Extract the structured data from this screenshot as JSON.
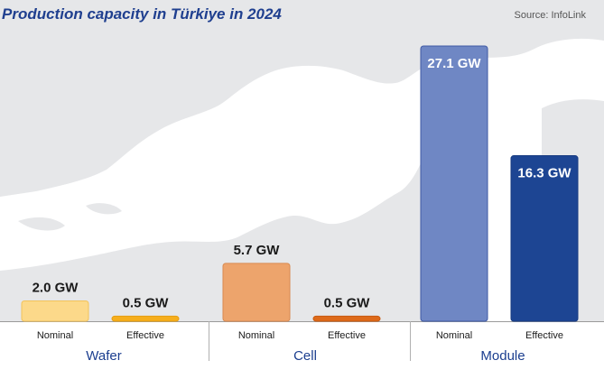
{
  "header": {
    "title": "Production capacity in Türkiye in 2024",
    "source": "Source: InfoLink"
  },
  "colors": {
    "background_map": "#e6e7e9",
    "axis": "#9a9a9a",
    "label_dark": "#1a1a1a",
    "label_light": "#ffffff",
    "group_label": "#1b3e8f"
  },
  "chart_data": {
    "type": "bar",
    "title": "Production capacity in Türkiye in 2024",
    "unit": "GW",
    "groups": [
      {
        "name": "Wafer",
        "bars": [
          {
            "category": "Nominal",
            "value": 2.0,
            "label": "2.0 GW",
            "color": "#fcd98a",
            "stroke": "#f2c35a",
            "label_color": "#1a1a1a"
          },
          {
            "category": "Effective",
            "value": 0.5,
            "label": "0.5 GW",
            "color": "#f6ae1c",
            "stroke": "#e59d10",
            "label_color": "#1a1a1a"
          }
        ]
      },
      {
        "name": "Cell",
        "bars": [
          {
            "category": "Nominal",
            "value": 5.7,
            "label": "5.7 GW",
            "color": "#eda46c",
            "stroke": "#d98a50",
            "label_color": "#1a1a1a"
          },
          {
            "category": "Effective",
            "value": 0.5,
            "label": "0.5 GW",
            "color": "#de6a1a",
            "stroke": "#c85a10",
            "label_color": "#1a1a1a"
          }
        ]
      },
      {
        "name": "Module",
        "bars": [
          {
            "category": "Nominal",
            "value": 27.1,
            "label": "27.1 GW",
            "color": "#6f87c4",
            "stroke": "#3f5aa5",
            "label_color": "#ffffff"
          },
          {
            "category": "Effective",
            "value": 16.3,
            "label": "16.3 GW",
            "color": "#1d4593",
            "stroke": "#163a80",
            "label_color": "#ffffff"
          }
        ]
      }
    ],
    "ylim": [
      0,
      27.1
    ],
    "grid": false,
    "legend": "none"
  }
}
